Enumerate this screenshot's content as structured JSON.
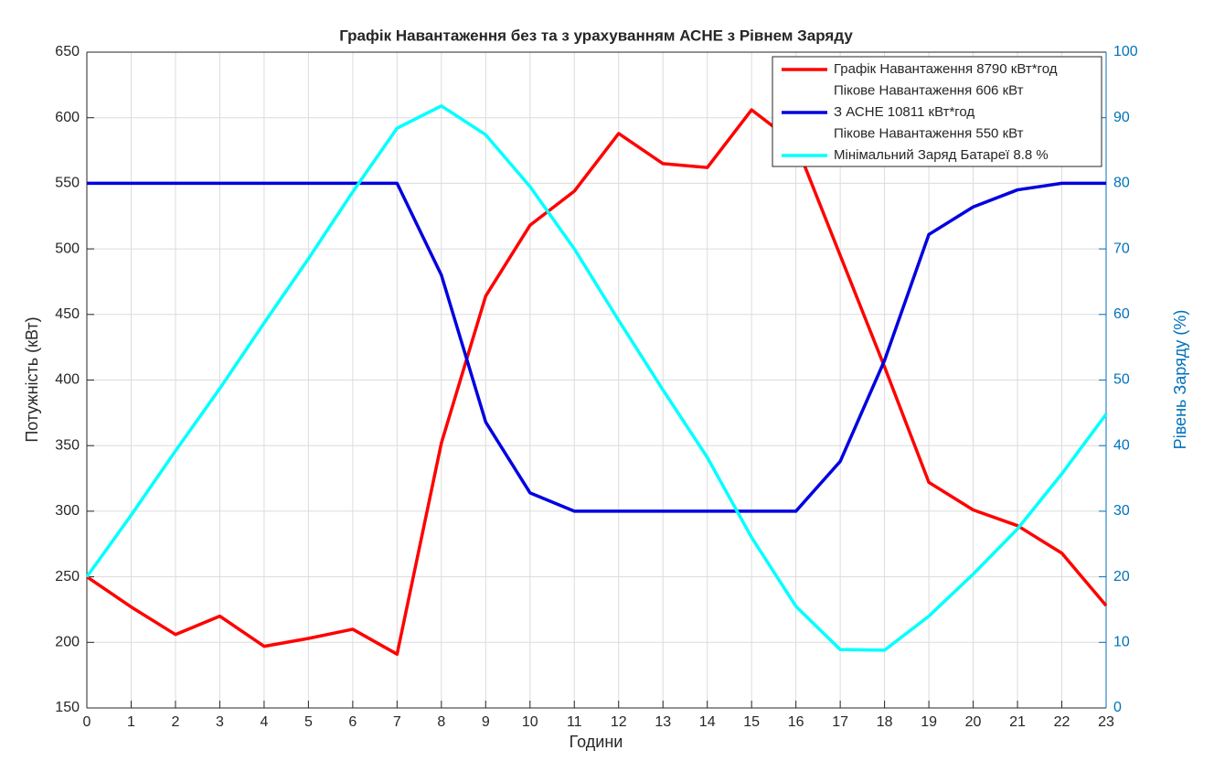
{
  "chart_data": {
    "type": "line",
    "title": "Графік Навантаження без та з урахуванням АСНЕ з Рівнем Заряду",
    "x_label": "Години",
    "y_label": "Потужність (кВт)",
    "y2_label": "Рівень Заряду (%)",
    "x": [
      0,
      1,
      2,
      3,
      4,
      5,
      6,
      7,
      8,
      9,
      10,
      11,
      12,
      13,
      14,
      15,
      16,
      17,
      18,
      19,
      20,
      21,
      22,
      23
    ],
    "xlim": [
      0,
      23
    ],
    "xticks": [
      0,
      1,
      2,
      3,
      4,
      5,
      6,
      7,
      8,
      9,
      10,
      11,
      12,
      13,
      14,
      15,
      16,
      17,
      18,
      19,
      20,
      21,
      22,
      23
    ],
    "ylim": [
      150,
      650
    ],
    "yticks": [
      150,
      200,
      250,
      300,
      350,
      400,
      450,
      500,
      550,
      600,
      650
    ],
    "y2lim": [
      0,
      100
    ],
    "y2ticks": [
      0,
      10,
      20,
      30,
      40,
      50,
      60,
      70,
      80,
      90,
      100
    ],
    "y2_color": "#0072bd",
    "grid": true,
    "legend": "northeast",
    "series": [
      {
        "name": [
          "Графік Навантаження 8790 кВт*год",
          "Пікове Навантаження 606 кВт"
        ],
        "color": "#ff0000",
        "values": [
          250,
          227,
          206,
          220,
          197,
          203,
          210,
          191,
          352,
          464,
          518,
          544,
          588,
          565,
          562,
          606,
          580,
          495,
          410,
          322,
          301,
          289,
          268,
          228
        ]
      },
      {
        "name": [
          "З АСНЕ 10811 кВт*год",
          "Пікове Навантаження 550 кВт"
        ],
        "color": "#0000e0",
        "values": [
          550,
          550,
          550,
          550,
          550,
          550,
          550,
          550,
          480,
          368,
          314,
          300,
          300,
          300,
          300,
          300,
          300,
          338,
          415,
          511,
          532,
          545,
          550,
          550
        ]
      },
      {
        "name": [
          "Мінімальний Заряд Батареї 8.8 %"
        ],
        "color": "#00ffff",
        "axis": "y2",
        "values": [
          20,
          29.4,
          39.2,
          48.7,
          58.7,
          68.5,
          78.7,
          88.4,
          91.8,
          87.4,
          79.5,
          70,
          59.1,
          48.5,
          38.2,
          26,
          15.5,
          8.9,
          8.8,
          14,
          20.4,
          27.3,
          35.7,
          44.8
        ]
      }
    ]
  }
}
